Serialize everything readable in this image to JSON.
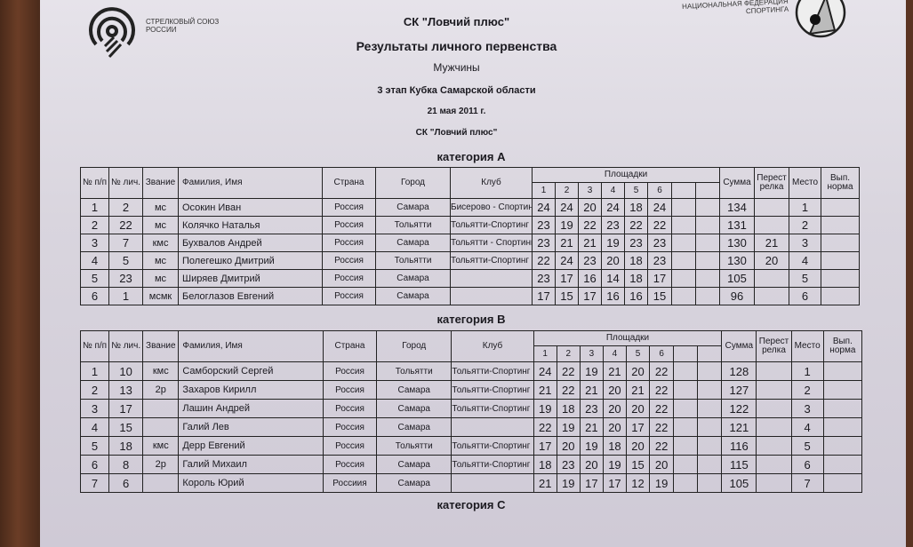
{
  "header": {
    "left_logo_text": [
      "СТРЕЛКОВЫЙ СОЮЗ",
      "РОССИИ"
    ],
    "right_logo_text": [
      "НАЦИОНАЛЬНАЯ ФЕДЕРАЦИЯ",
      "СПОРТИНГА"
    ],
    "organizer": "СК \"Ловчий плюс\"",
    "title": "Результаты личного первенства",
    "gender": "Мужчины",
    "event": "3 этап Кубка Самарской области",
    "date": "21 мая 2011 г.",
    "venue": "СК \"Ловчий плюс\""
  },
  "columns": {
    "np": "№ п/п",
    "nl": "№ лич.",
    "rank": "Звание",
    "name": "Фамилия, Имя",
    "country": "Страна",
    "city": "Город",
    "club": "Клуб",
    "plots": "Площадки",
    "plot_numbers": [
      "1",
      "2",
      "3",
      "4",
      "5",
      "6"
    ],
    "sum": "Сумма",
    "shootoff": "Перест релка",
    "place": "Место",
    "norm": "Вып. норма"
  },
  "categories": [
    {
      "title": "категория А",
      "rows": [
        {
          "np": "1",
          "nl": "2",
          "rank": "мс",
          "name": "Осокин Иван",
          "country": "Россия",
          "city": "Самара",
          "club": "Бисерово - Спортинг",
          "scores": [
            "24",
            "24",
            "20",
            "24",
            "18",
            "24"
          ],
          "sum": "134",
          "shootoff": "",
          "place": "1",
          "norm": ""
        },
        {
          "np": "2",
          "nl": "22",
          "rank": "мс",
          "name": "Колячко Наталья",
          "country": "Россия",
          "city": "Тольятти",
          "club": "Тольятти-Спортинг",
          "scores": [
            "23",
            "19",
            "22",
            "23",
            "22",
            "22"
          ],
          "sum": "131",
          "shootoff": "",
          "place": "2",
          "norm": ""
        },
        {
          "np": "3",
          "nl": "7",
          "rank": "кмс",
          "name": "Бухвалов Андрей",
          "country": "Россия",
          "city": "Самара",
          "club": "Тольятти - Спортинг",
          "scores": [
            "23",
            "21",
            "21",
            "19",
            "23",
            "23"
          ],
          "sum": "130",
          "shootoff": "21",
          "place": "3",
          "norm": ""
        },
        {
          "np": "4",
          "nl": "5",
          "rank": "мс",
          "name": "Полегешко Дмитрий",
          "country": "Россия",
          "city": "Тольятти",
          "club": "Тольятти-Спортинг",
          "scores": [
            "22",
            "24",
            "23",
            "20",
            "18",
            "23"
          ],
          "sum": "130",
          "shootoff": "20",
          "place": "4",
          "norm": ""
        },
        {
          "np": "5",
          "nl": "23",
          "rank": "мс",
          "name": "Ширяев Дмитрий",
          "country": "Россия",
          "city": "Самара",
          "club": "",
          "scores": [
            "23",
            "17",
            "16",
            "14",
            "18",
            "17"
          ],
          "sum": "105",
          "shootoff": "",
          "place": "5",
          "norm": ""
        },
        {
          "np": "6",
          "nl": "1",
          "rank": "мсмк",
          "name": "Белоглазов Евгений",
          "country": "Россия",
          "city": "Самара",
          "club": "",
          "scores": [
            "17",
            "15",
            "17",
            "16",
            "16",
            "15"
          ],
          "sum": "96",
          "shootoff": "",
          "place": "6",
          "norm": ""
        }
      ]
    },
    {
      "title": "категория В",
      "rows": [
        {
          "np": "1",
          "nl": "10",
          "rank": "кмс",
          "name": "Самборский Сергей",
          "country": "Россия",
          "city": "Тольятти",
          "club": "Тольятти-Спортинг",
          "scores": [
            "24",
            "22",
            "19",
            "21",
            "20",
            "22"
          ],
          "sum": "128",
          "shootoff": "",
          "place": "1",
          "norm": ""
        },
        {
          "np": "2",
          "nl": "13",
          "rank": "2р",
          "name": "Захаров Кирилл",
          "country": "Россия",
          "city": "Самара",
          "club": "Тольятти-Спортинг",
          "scores": [
            "21",
            "22",
            "21",
            "20",
            "21",
            "22"
          ],
          "sum": "127",
          "shootoff": "",
          "place": "2",
          "norm": ""
        },
        {
          "np": "3",
          "nl": "17",
          "rank": "",
          "name": "Лашин Андрей",
          "country": "Россия",
          "city": "Самара",
          "club": "Тольятти-Спортинг",
          "scores": [
            "19",
            "18",
            "23",
            "20",
            "20",
            "22"
          ],
          "sum": "122",
          "shootoff": "",
          "place": "3",
          "norm": ""
        },
        {
          "np": "4",
          "nl": "15",
          "rank": "",
          "name": "Галий Лев",
          "country": "Россия",
          "city": "Самара",
          "club": "",
          "scores": [
            "22",
            "19",
            "21",
            "20",
            "17",
            "22"
          ],
          "sum": "121",
          "shootoff": "",
          "place": "4",
          "norm": ""
        },
        {
          "np": "5",
          "nl": "18",
          "rank": "кмс",
          "name": "Дерр Евгений",
          "country": "Россия",
          "city": "Тольятти",
          "club": "Тольятти-Спортинг",
          "scores": [
            "17",
            "20",
            "19",
            "18",
            "20",
            "22"
          ],
          "sum": "116",
          "shootoff": "",
          "place": "5",
          "norm": ""
        },
        {
          "np": "6",
          "nl": "8",
          "rank": "2р",
          "name": "Галий Михаил",
          "country": "Россия",
          "city": "Самара",
          "club": "Тольятти-Спортинг",
          "scores": [
            "18",
            "23",
            "20",
            "19",
            "15",
            "20"
          ],
          "sum": "115",
          "shootoff": "",
          "place": "6",
          "norm": ""
        },
        {
          "np": "7",
          "nl": "6",
          "rank": "",
          "name": "Король Юрий",
          "country": "Россиия",
          "city": "Самара",
          "club": "",
          "scores": [
            "21",
            "19",
            "17",
            "17",
            "12",
            "19"
          ],
          "sum": "105",
          "shootoff": "",
          "place": "7",
          "norm": ""
        }
      ]
    },
    {
      "title": "категория С",
      "rows": []
    }
  ]
}
